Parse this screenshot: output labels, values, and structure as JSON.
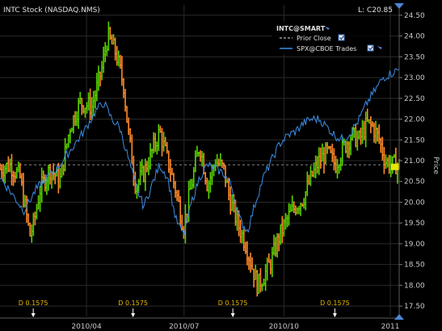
{
  "title": "INTC Stock (NASDAQ.NMS)",
  "last_price_label": "L: C20.85",
  "legend": {
    "header": "INTC@SMART",
    "items": [
      {
        "label": "Prior Close",
        "color": "#9a9a9a",
        "style": "dashed"
      },
      {
        "label": "SPX@CBOE Trades",
        "color": "#3c8ee6",
        "style": "solid"
      }
    ]
  },
  "colors": {
    "up": "#5ad200",
    "down": "#ff8a2a",
    "spx": "#3c8ee6",
    "prior_close": "#8a8a8a",
    "grid": "#2a2a2a",
    "dividend": "#e6b800",
    "last_tag": "#e6e600"
  },
  "chart_data": {
    "type": "line",
    "ylabel": "Price",
    "y_ticks": [
      "17.50",
      "18.00",
      "18.50",
      "19.00",
      "19.50",
      "20.00",
      "20.50",
      "21.00",
      "21.50",
      "22.00",
      "22.50",
      "23.00",
      "23.50",
      "24.00",
      "24.50"
    ],
    "ylim": [
      17.25,
      24.75
    ],
    "x_ticks": [
      {
        "label": "2010/04",
        "t": 0.2167
      },
      {
        "label": "2010/07",
        "t": 0.4611
      },
      {
        "label": "2010/10",
        "t": 0.7111
      },
      {
        "label": "2011",
        "t": 0.9778
      }
    ],
    "prior_close": 20.9,
    "last_price": 20.85,
    "dividends": [
      {
        "label": "D 0.1575",
        "t": 0.0833
      },
      {
        "label": "D 0.1575",
        "t": 0.3333
      },
      {
        "label": "D 0.1575",
        "t": 0.5833
      },
      {
        "label": "D 0.1575",
        "t": 0.8389
      }
    ],
    "intc_anchors": [
      [
        0.0,
        20.8
      ],
      [
        0.025,
        20.9
      ],
      [
        0.05,
        20.6
      ],
      [
        0.075,
        19.2
      ],
      [
        0.085,
        19.5
      ],
      [
        0.1,
        20.3
      ],
      [
        0.125,
        20.8
      ],
      [
        0.15,
        20.5
      ],
      [
        0.175,
        21.8
      ],
      [
        0.2,
        22.4
      ],
      [
        0.23,
        22.3
      ],
      [
        0.255,
        23.2
      ],
      [
        0.27,
        24.0
      ],
      [
        0.29,
        23.6
      ],
      [
        0.31,
        22.8
      ],
      [
        0.32,
        21.8
      ],
      [
        0.34,
        20.4
      ],
      [
        0.36,
        20.7
      ],
      [
        0.38,
        21.2
      ],
      [
        0.4,
        21.7
      ],
      [
        0.42,
        21.0
      ],
      [
        0.44,
        20.3
      ],
      [
        0.46,
        19.4
      ],
      [
        0.475,
        20.2
      ],
      [
        0.5,
        21.4
      ],
      [
        0.52,
        20.4
      ],
      [
        0.54,
        21.0
      ],
      [
        0.56,
        20.8
      ],
      [
        0.575,
        20.1
      ],
      [
        0.595,
        19.5
      ],
      [
        0.615,
        19.0
      ],
      [
        0.63,
        18.5
      ],
      [
        0.645,
        18.0
      ],
      [
        0.66,
        18.2
      ],
      [
        0.68,
        18.6
      ],
      [
        0.7,
        19.2
      ],
      [
        0.72,
        19.6
      ],
      [
        0.74,
        19.9
      ],
      [
        0.76,
        20.1
      ],
      [
        0.78,
        20.6
      ],
      [
        0.8,
        21.0
      ],
      [
        0.82,
        21.2
      ],
      [
        0.84,
        20.9
      ],
      [
        0.86,
        21.3
      ],
      [
        0.88,
        21.6
      ],
      [
        0.9,
        21.5
      ],
      [
        0.92,
        21.9
      ],
      [
        0.935,
        21.8
      ],
      [
        0.95,
        21.5
      ],
      [
        0.965,
        21.0
      ],
      [
        0.98,
        20.9
      ],
      [
        1.0,
        20.9
      ]
    ],
    "spx_anchors": [
      [
        0.0,
        20.6
      ],
      [
        0.03,
        20.2
      ],
      [
        0.06,
        19.8
      ],
      [
        0.09,
        20.3
      ],
      [
        0.12,
        20.6
      ],
      [
        0.15,
        20.9
      ],
      [
        0.18,
        21.3
      ],
      [
        0.21,
        21.7
      ],
      [
        0.24,
        22.2
      ],
      [
        0.26,
        22.4
      ],
      [
        0.28,
        22.0
      ],
      [
        0.3,
        21.8
      ],
      [
        0.32,
        21.1
      ],
      [
        0.34,
        20.4
      ],
      [
        0.36,
        19.9
      ],
      [
        0.38,
        20.4
      ],
      [
        0.4,
        20.9
      ],
      [
        0.42,
        20.6
      ],
      [
        0.44,
        19.6
      ],
      [
        0.46,
        19.2
      ],
      [
        0.48,
        20.0
      ],
      [
        0.5,
        20.6
      ],
      [
        0.52,
        20.9
      ],
      [
        0.54,
        20.8
      ],
      [
        0.56,
        20.7
      ],
      [
        0.58,
        20.4
      ],
      [
        0.6,
        19.6
      ],
      [
        0.62,
        19.3
      ],
      [
        0.64,
        20.0
      ],
      [
        0.66,
        20.6
      ],
      [
        0.68,
        21.0
      ],
      [
        0.7,
        21.4
      ],
      [
        0.72,
        21.6
      ],
      [
        0.74,
        21.7
      ],
      [
        0.76,
        21.9
      ],
      [
        0.78,
        22.0
      ],
      [
        0.8,
        22.0
      ],
      [
        0.82,
        21.8
      ],
      [
        0.84,
        21.6
      ],
      [
        0.86,
        21.5
      ],
      [
        0.88,
        21.7
      ],
      [
        0.9,
        22.0
      ],
      [
        0.92,
        22.4
      ],
      [
        0.94,
        22.7
      ],
      [
        0.96,
        23.0
      ],
      [
        0.98,
        23.1
      ],
      [
        1.0,
        23.2
      ]
    ]
  }
}
